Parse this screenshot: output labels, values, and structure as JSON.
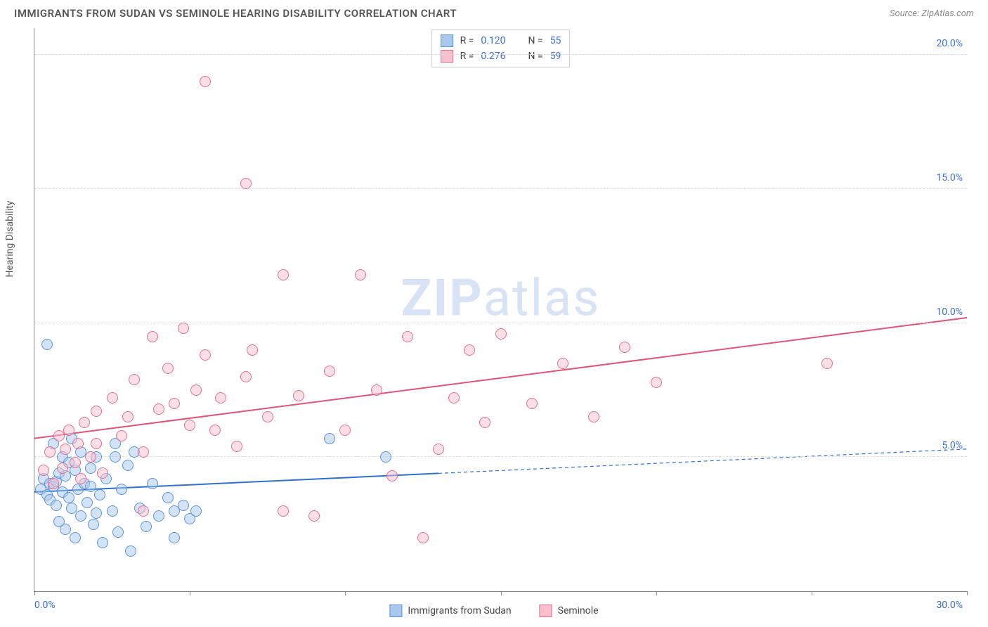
{
  "title": "IMMIGRANTS FROM SUDAN VS SEMINOLE HEARING DISABILITY CORRELATION CHART",
  "source": "Source: ZipAtlas.com",
  "y_axis_title": "Hearing Disability",
  "watermark_bold": "ZIP",
  "watermark_rest": "atlas",
  "chart": {
    "type": "scatter",
    "background_color": "#ffffff",
    "grid_color": "#dddddd",
    "axis_color": "#888888",
    "tick_label_color": "#3b6fd6",
    "x_min": 0.0,
    "x_max": 30.0,
    "y_min": 0.0,
    "y_max": 21.0,
    "x_ticks": [
      0,
      5,
      10,
      15,
      20,
      25,
      30
    ],
    "y_gridlines": [
      5.0,
      10.0,
      15.0,
      20.0
    ],
    "y_tick_labels": [
      "5.0%",
      "10.0%",
      "15.0%",
      "20.0%"
    ],
    "x_left_label": "0.0%",
    "x_right_label": "30.0%",
    "marker_radius": 8,
    "marker_stroke_width": 1,
    "marker_fill_opacity": 0.25,
    "trend_line_width": 2
  },
  "legend_top": [
    {
      "swatch_fill": "#a8c8ee",
      "swatch_stroke": "#5c93da",
      "r_label": "R =",
      "r_value": "0.120",
      "n_label": "N =",
      "n_value": "55"
    },
    {
      "swatch_fill": "#f6c0cd",
      "swatch_stroke": "#e76f8f",
      "r_label": "R =",
      "r_value": "0.276",
      "n_label": "N =",
      "n_value": "59"
    }
  ],
  "legend_bottom": [
    {
      "swatch_fill": "#a8c8ee",
      "swatch_stroke": "#5c93da",
      "label": "Immigrants from Sudan"
    },
    {
      "swatch_fill": "#f6c0cd",
      "swatch_stroke": "#e76f8f",
      "label": "Seminole"
    }
  ],
  "series": [
    {
      "name": "Immigrants from Sudan",
      "fill": "#a8c8ee",
      "stroke": "#5c93da",
      "trend": {
        "y_at_xmin": 3.7,
        "y_at_xmax": 5.3,
        "solid_until_x": 13.0,
        "color": "#2f6fd0"
      },
      "points": [
        [
          0.2,
          3.8
        ],
        [
          0.3,
          4.2
        ],
        [
          0.4,
          3.6
        ],
        [
          0.5,
          4.0
        ],
        [
          0.5,
          3.4
        ],
        [
          0.6,
          3.9
        ],
        [
          0.6,
          5.5
        ],
        [
          0.7,
          4.1
        ],
        [
          0.7,
          3.2
        ],
        [
          0.8,
          4.4
        ],
        [
          0.8,
          2.6
        ],
        [
          0.9,
          3.7
        ],
        [
          0.9,
          5.0
        ],
        [
          1.0,
          4.3
        ],
        [
          1.0,
          2.3
        ],
        [
          1.1,
          3.5
        ],
        [
          1.1,
          4.8
        ],
        [
          1.2,
          3.1
        ],
        [
          1.2,
          5.7
        ],
        [
          1.3,
          2.0
        ],
        [
          1.3,
          4.5
        ],
        [
          1.4,
          3.8
        ],
        [
          1.5,
          5.2
        ],
        [
          1.5,
          2.8
        ],
        [
          1.6,
          4.0
        ],
        [
          1.7,
          3.3
        ],
        [
          1.8,
          4.6
        ],
        [
          1.9,
          2.5
        ],
        [
          2.0,
          5.0
        ],
        [
          2.1,
          3.6
        ],
        [
          2.2,
          1.8
        ],
        [
          2.3,
          4.2
        ],
        [
          2.5,
          3.0
        ],
        [
          2.6,
          5.5
        ],
        [
          2.7,
          2.2
        ],
        [
          2.8,
          3.8
        ],
        [
          3.0,
          4.7
        ],
        [
          3.1,
          1.5
        ],
        [
          3.2,
          5.2
        ],
        [
          3.4,
          3.1
        ],
        [
          3.6,
          2.4
        ],
        [
          3.8,
          4.0
        ],
        [
          4.0,
          2.8
        ],
        [
          4.3,
          3.5
        ],
        [
          4.5,
          2.0
        ],
        [
          4.8,
          3.2
        ],
        [
          5.0,
          2.7
        ],
        [
          5.2,
          3.0
        ],
        [
          0.4,
          9.2
        ],
        [
          2.6,
          5.0
        ],
        [
          4.5,
          3.0
        ],
        [
          9.5,
          5.7
        ],
        [
          11.3,
          5.0
        ],
        [
          1.8,
          3.9
        ],
        [
          2.0,
          2.9
        ]
      ]
    },
    {
      "name": "Seminole",
      "fill": "#f6c0cd",
      "stroke": "#e76f8f",
      "trend": {
        "y_at_xmin": 5.7,
        "y_at_xmax": 10.2,
        "solid_until_x": 30.0,
        "color": "#e05577"
      },
      "points": [
        [
          0.3,
          4.5
        ],
        [
          0.5,
          5.2
        ],
        [
          0.6,
          4.0
        ],
        [
          0.8,
          5.8
        ],
        [
          0.9,
          4.6
        ],
        [
          1.0,
          5.3
        ],
        [
          1.1,
          6.0
        ],
        [
          1.3,
          4.8
        ],
        [
          1.4,
          5.5
        ],
        [
          1.6,
          6.3
        ],
        [
          1.8,
          5.0
        ],
        [
          2.0,
          6.7
        ],
        [
          2.2,
          4.4
        ],
        [
          2.5,
          7.2
        ],
        [
          2.8,
          5.8
        ],
        [
          3.0,
          6.5
        ],
        [
          3.2,
          7.9
        ],
        [
          3.5,
          5.2
        ],
        [
          3.8,
          9.5
        ],
        [
          4.0,
          6.8
        ],
        [
          4.3,
          8.3
        ],
        [
          4.5,
          7.0
        ],
        [
          4.8,
          9.8
        ],
        [
          5.0,
          6.2
        ],
        [
          5.2,
          7.5
        ],
        [
          5.5,
          8.8
        ],
        [
          5.8,
          6.0
        ],
        [
          6.0,
          7.2
        ],
        [
          6.5,
          5.4
        ],
        [
          6.8,
          8.0
        ],
        [
          7.0,
          9.0
        ],
        [
          7.5,
          6.5
        ],
        [
          8.0,
          11.8
        ],
        [
          8.5,
          7.3
        ],
        [
          9.0,
          2.8
        ],
        [
          9.5,
          8.2
        ],
        [
          10.0,
          6.0
        ],
        [
          10.5,
          11.8
        ],
        [
          11.0,
          7.5
        ],
        [
          11.5,
          4.3
        ],
        [
          12.0,
          9.5
        ],
        [
          12.5,
          2.0
        ],
        [
          13.0,
          5.3
        ],
        [
          13.5,
          7.2
        ],
        [
          14.0,
          9.0
        ],
        [
          14.5,
          6.3
        ],
        [
          15.0,
          9.6
        ],
        [
          16.0,
          7.0
        ],
        [
          17.0,
          8.5
        ],
        [
          18.0,
          6.5
        ],
        [
          19.0,
          9.1
        ],
        [
          20.0,
          7.8
        ],
        [
          5.5,
          19.0
        ],
        [
          6.8,
          15.2
        ],
        [
          25.5,
          8.5
        ],
        [
          2.0,
          5.5
        ],
        [
          1.5,
          4.2
        ],
        [
          3.5,
          3.0
        ],
        [
          8.0,
          3.0
        ]
      ]
    }
  ]
}
